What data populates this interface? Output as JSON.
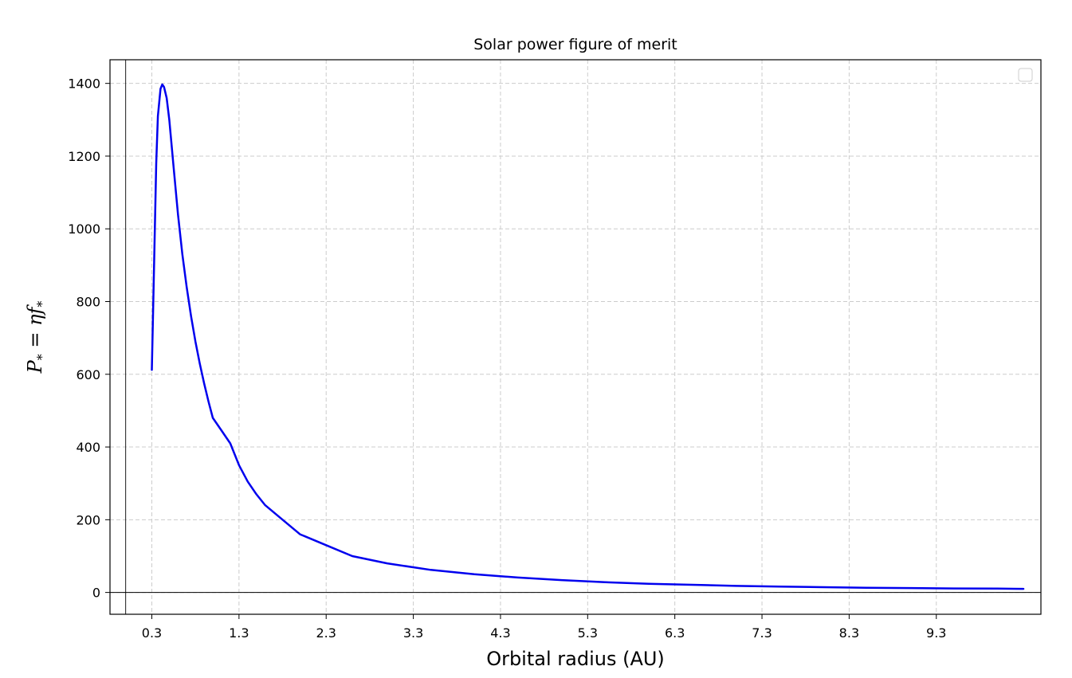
{
  "chart_data": {
    "type": "line",
    "title": "Solar power figure of merit",
    "xlabel": "Orbital radius (AU)",
    "ylabel": {
      "main": "P",
      "sub": "*",
      "eq": " = ηf",
      "sub2": "*"
    },
    "xlim": [
      -0.18,
      10.5
    ],
    "ylim": [
      -60,
      1465
    ],
    "x_ticks": [
      0.3,
      1.3,
      2.3,
      3.3,
      4.3,
      5.3,
      6.3,
      7.3,
      8.3,
      9.3
    ],
    "x_tick_labels": [
      "0.3",
      "1.3",
      "2.3",
      "3.3",
      "4.3",
      "5.3",
      "6.3",
      "7.3",
      "8.3",
      "9.3"
    ],
    "y_ticks": [
      0,
      200,
      400,
      600,
      800,
      1000,
      1200,
      1400
    ],
    "y_tick_labels": [
      "0",
      "200",
      "400",
      "600",
      "800",
      "1000",
      "1200",
      "1400"
    ],
    "grid": true,
    "grid_style": "dashed",
    "reference_lines": {
      "horizontal_at_y": 0,
      "vertical_at_x": 0
    },
    "legend": {
      "placement": "top-right",
      "entries": []
    },
    "series": [
      {
        "color": "#0000ee",
        "x": [
          0.3,
          0.33,
          0.35,
          0.37,
          0.4,
          0.42,
          0.44,
          0.47,
          0.5,
          0.55,
          0.6,
          0.65,
          0.7,
          0.75,
          0.8,
          0.85,
          0.9,
          0.95,
          1.0,
          1.1,
          1.2,
          1.3,
          1.4,
          1.5,
          1.6,
          1.8,
          2.0,
          2.3,
          2.6,
          3.0,
          3.5,
          4.0,
          4.5,
          5.0,
          5.5,
          6.0,
          6.5,
          7.0,
          7.5,
          8.0,
          8.5,
          9.0,
          9.5,
          10.0,
          10.3
        ],
        "y": [
          612,
          950,
          1180,
          1310,
          1385,
          1397,
          1390,
          1360,
          1300,
          1170,
          1040,
          930,
          840,
          760,
          690,
          630,
          575,
          525,
          480,
          445,
          410,
          350,
          305,
          270,
          240,
          200,
          160,
          130,
          100,
          80,
          62,
          50,
          41,
          34,
          28,
          24,
          21,
          18,
          16,
          14.5,
          13,
          12,
          11,
          10.5,
          10
        ]
      }
    ]
  }
}
